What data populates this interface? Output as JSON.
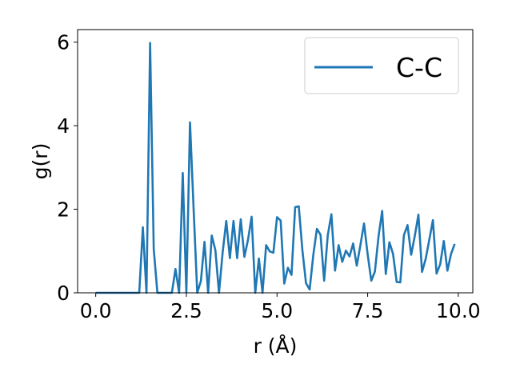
{
  "chart_data": {
    "type": "line",
    "title": "",
    "xlabel": "r (Å)",
    "ylabel": "g(r)",
    "xlim": [
      -0.5,
      10.4
    ],
    "ylim": [
      0,
      6.3
    ],
    "xticks": [
      0.0,
      2.5,
      5.0,
      7.5,
      10.0
    ],
    "xtick_labels": [
      "0.0",
      "2.5",
      "5.0",
      "7.5",
      "10.0"
    ],
    "yticks": [
      0,
      2,
      4,
      6
    ],
    "ytick_labels": [
      "0",
      "2",
      "4",
      "6"
    ],
    "grid": false,
    "legend_position": "top-right",
    "series": [
      {
        "name": "C-C",
        "color": "#1f77b4",
        "x": [
          0.0,
          0.1,
          0.2,
          0.3,
          0.4,
          0.5,
          0.6,
          0.7,
          0.8,
          0.9,
          1.0,
          1.1,
          1.2,
          1.3,
          1.4,
          1.5,
          1.6,
          1.7,
          1.8,
          1.9,
          2.0,
          2.1,
          2.2,
          2.3,
          2.4,
          2.5,
          2.6,
          2.7,
          2.8,
          2.9,
          3.0,
          3.1,
          3.2,
          3.3,
          3.4,
          3.5,
          3.6,
          3.7,
          3.8,
          3.9,
          4.0,
          4.1,
          4.2,
          4.3,
          4.4,
          4.5,
          4.6,
          4.7,
          4.8,
          4.9,
          5.0,
          5.1,
          5.2,
          5.3,
          5.4,
          5.5,
          5.6,
          5.7,
          5.8,
          5.9,
          6.0,
          6.1,
          6.2,
          6.3,
          6.4,
          6.5,
          6.6,
          6.7,
          6.8,
          6.9,
          7.0,
          7.1,
          7.2,
          7.3,
          7.4,
          7.5,
          7.6,
          7.7,
          7.8,
          7.9,
          8.0,
          8.1,
          8.2,
          8.3,
          8.4,
          8.5,
          8.6,
          8.7,
          8.8,
          8.9,
          9.0,
          9.1,
          9.2,
          9.3,
          9.4,
          9.5,
          9.6,
          9.7,
          9.8,
          9.9
        ],
        "y": [
          0,
          0,
          0,
          0,
          0,
          0,
          0,
          0,
          0,
          0,
          0,
          0,
          0,
          1.57,
          0,
          5.98,
          1.05,
          0,
          0,
          0,
          0,
          0,
          0.57,
          0,
          2.87,
          0,
          4.08,
          2.0,
          0,
          0.28,
          1.22,
          0,
          1.37,
          1.02,
          0,
          0.96,
          1.72,
          0.83,
          1.72,
          0.83,
          1.76,
          0.86,
          1.27,
          1.82,
          0,
          0.82,
          0,
          1.14,
          0.99,
          0.96,
          1.81,
          1.73,
          0.22,
          0.6,
          0.43,
          2.05,
          2.07,
          1.02,
          0.23,
          0.08,
          0.9,
          1.53,
          1.39,
          0.29,
          1.38,
          1.88,
          0.53,
          1.14,
          0.74,
          1.01,
          0.87,
          1.18,
          0.65,
          1.14,
          1.66,
          0.92,
          0.29,
          0.51,
          1.35,
          1.96,
          0.45,
          1.21,
          0.93,
          0.26,
          0.25,
          1.38,
          1.62,
          0.91,
          1.36,
          1.87,
          0.5,
          0.81,
          1.27,
          1.74,
          0.46,
          0.68,
          1.24,
          0.53,
          0.93,
          1.17
        ]
      }
    ]
  }
}
